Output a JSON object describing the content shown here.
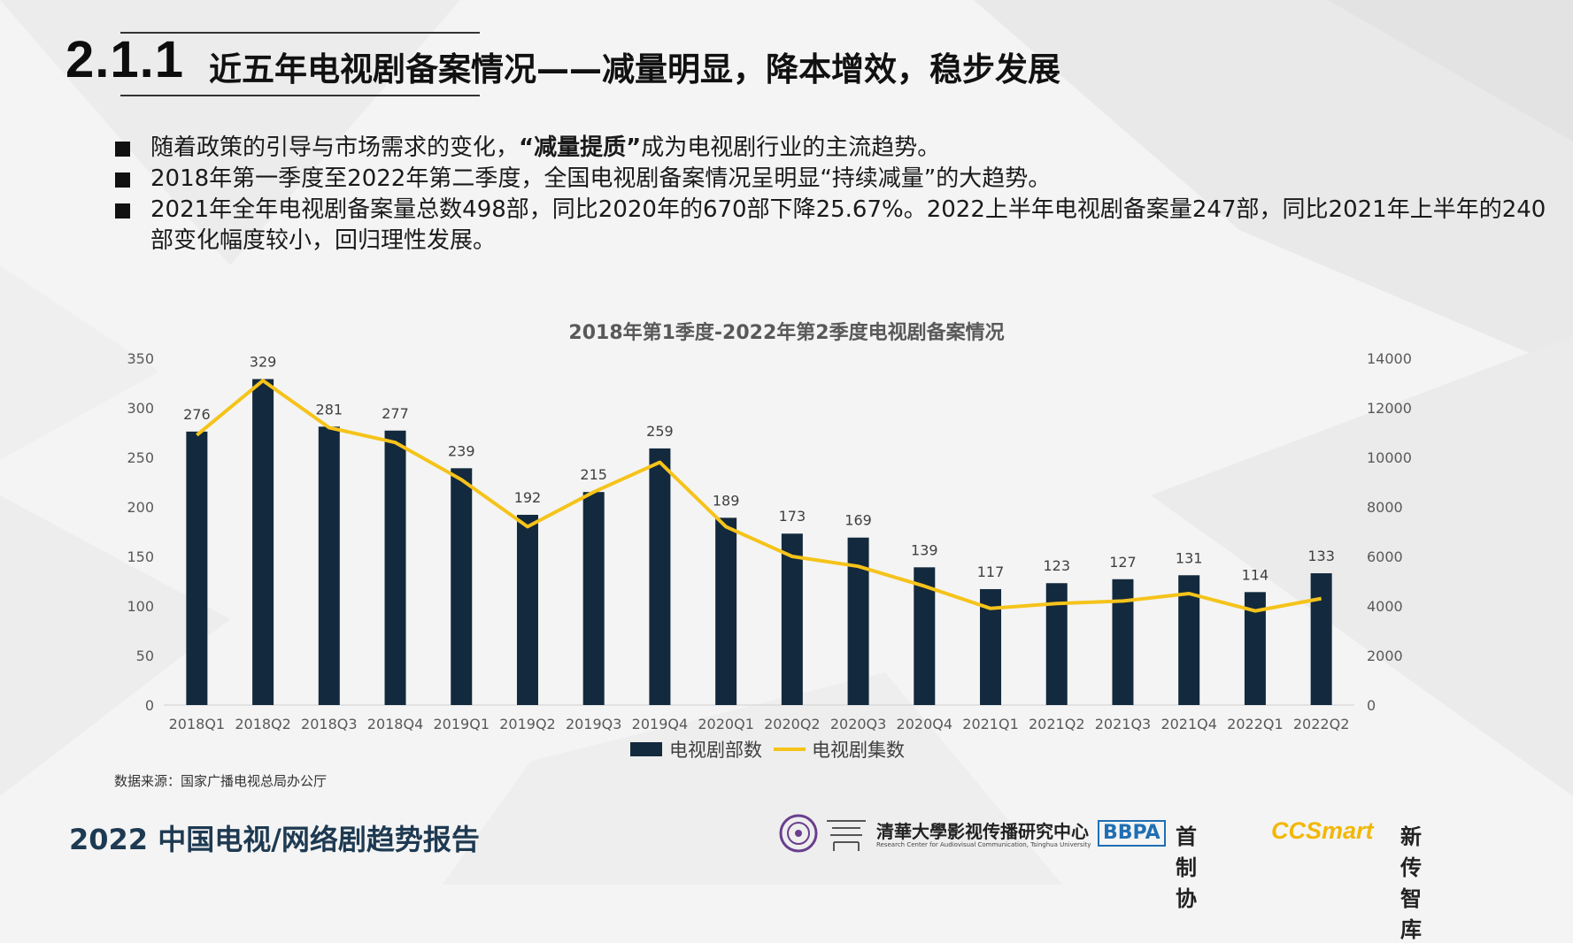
{
  "header": {
    "section_number": "2.1.1",
    "title": "近五年电视剧备案情况——减量明显，降本增效，稳步发展"
  },
  "bullets": [
    {
      "pre": "随着政策的引导与市场需求的变化，",
      "bold": "“减量提质”",
      "post": "成为电视剧行业的主流趋势。"
    },
    {
      "pre": "2018年第一季度至2022年第二季度，全国电视剧备案情况呈明显“持续减量”的大趋势。",
      "bold": "",
      "post": ""
    },
    {
      "pre": "2021年全年电视剧备案量总数498部，同比2020年的670部下降25.67%。2022上半年电视剧备案量247部，同比2021年上半年的240部变化幅度较小，回归理性发展。",
      "bold": "",
      "post": ""
    }
  ],
  "chart_data": {
    "type": "bar",
    "title": "2018年第1季度-2022年第2季度电视剧备案情况",
    "categories": [
      "2018Q1",
      "2018Q2",
      "2018Q3",
      "2018Q4",
      "2019Q1",
      "2019Q2",
      "2019Q3",
      "2019Q4",
      "2020Q1",
      "2020Q2",
      "2020Q3",
      "2020Q4",
      "2021Q1",
      "2021Q2",
      "2021Q3",
      "2021Q4",
      "2022Q1",
      "2022Q2"
    ],
    "series": [
      {
        "name": "电视剧部数",
        "type": "bar",
        "axis": "left",
        "color": "#13293d",
        "values": [
          276,
          329,
          281,
          277,
          239,
          192,
          215,
          259,
          189,
          173,
          169,
          139,
          117,
          123,
          127,
          131,
          114,
          133
        ]
      },
      {
        "name": "电视剧集数",
        "type": "line",
        "axis": "right",
        "color": "#f5c31a",
        "values": [
          10900,
          13100,
          11200,
          10600,
          9100,
          7200,
          8600,
          9800,
          7200,
          6000,
          5600,
          4800,
          3900,
          4100,
          4200,
          4500,
          3800,
          4300
        ]
      }
    ],
    "y_left": {
      "min": 0,
      "max": 350,
      "ticks": [
        0,
        50,
        100,
        150,
        200,
        250,
        300,
        350
      ]
    },
    "y_right": {
      "min": 0,
      "max": 14000,
      "ticks": [
        0,
        2000,
        4000,
        6000,
        8000,
        10000,
        12000,
        14000
      ]
    },
    "legend_position": "bottom",
    "grid": false
  },
  "source": "数据来源：国家广播电视总局办公厅",
  "footer": {
    "report_title": "2022 中国电视/网络剧趋势报告",
    "logos": {
      "tsinghua_text": "清華大學影视传播研究中心",
      "tsinghua_sub": "Research Center for Audiovisual Communication, Tsinghua University",
      "bbpa": "BBPA",
      "bbpa_cn": "首制协",
      "ccsmart": "CCSmart",
      "ccsmart_cn": "新传智库"
    }
  }
}
